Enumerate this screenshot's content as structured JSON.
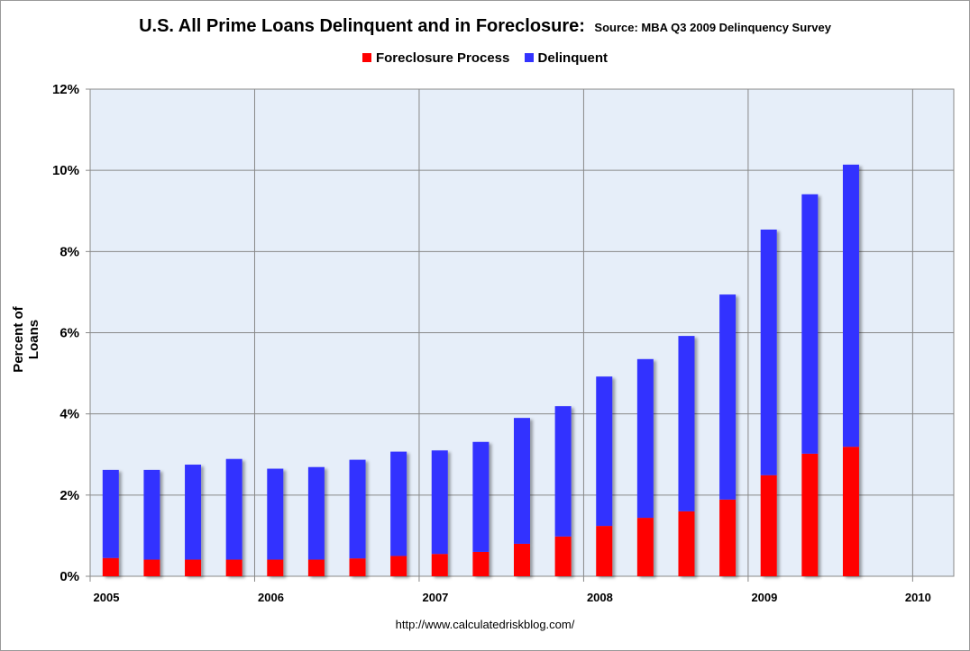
{
  "chart_data": {
    "type": "bar",
    "stacked": true,
    "title": "U.S. All Prime Loans Delinquent and in Foreclosure:",
    "subtitle": "Source: MBA Q3 2009 Delinquency Survey",
    "xlabel": "",
    "ylabel": "Percent of Loans",
    "footer": "http://www.calculatedriskblog.com/",
    "xlim": [
      2005,
      2010.25
    ],
    "ylim": [
      0,
      12
    ],
    "x_ticks": [
      "2005",
      "2006",
      "2007",
      "2008",
      "2009",
      "2010"
    ],
    "y_ticks": [
      "0%",
      "2%",
      "4%",
      "6%",
      "8%",
      "10%",
      "12%"
    ],
    "grid": true,
    "legend_position": "top",
    "x": [
      2005.125,
      2005.375,
      2005.625,
      2005.875,
      2006.125,
      2006.375,
      2006.625,
      2006.875,
      2007.125,
      2007.375,
      2007.625,
      2007.875,
      2008.125,
      2008.375,
      2008.625,
      2008.875,
      2009.125,
      2009.375,
      2009.625
    ],
    "series": [
      {
        "name": "Foreclosure Process",
        "color": "#ff0000",
        "values": [
          0.45,
          0.41,
          0.41,
          0.41,
          0.41,
          0.41,
          0.44,
          0.5,
          0.55,
          0.6,
          0.8,
          0.98,
          1.24,
          1.44,
          1.6,
          1.89,
          2.49,
          3.02,
          3.19
        ]
      },
      {
        "name": "Delinquent",
        "color": "#3333ff",
        "values": [
          2.17,
          2.21,
          2.34,
          2.48,
          2.24,
          2.28,
          2.43,
          2.57,
          2.55,
          2.71,
          3.1,
          3.21,
          3.68,
          3.91,
          4.32,
          5.05,
          6.05,
          6.39,
          6.95
        ]
      }
    ],
    "background_color": "#e6eef9"
  }
}
